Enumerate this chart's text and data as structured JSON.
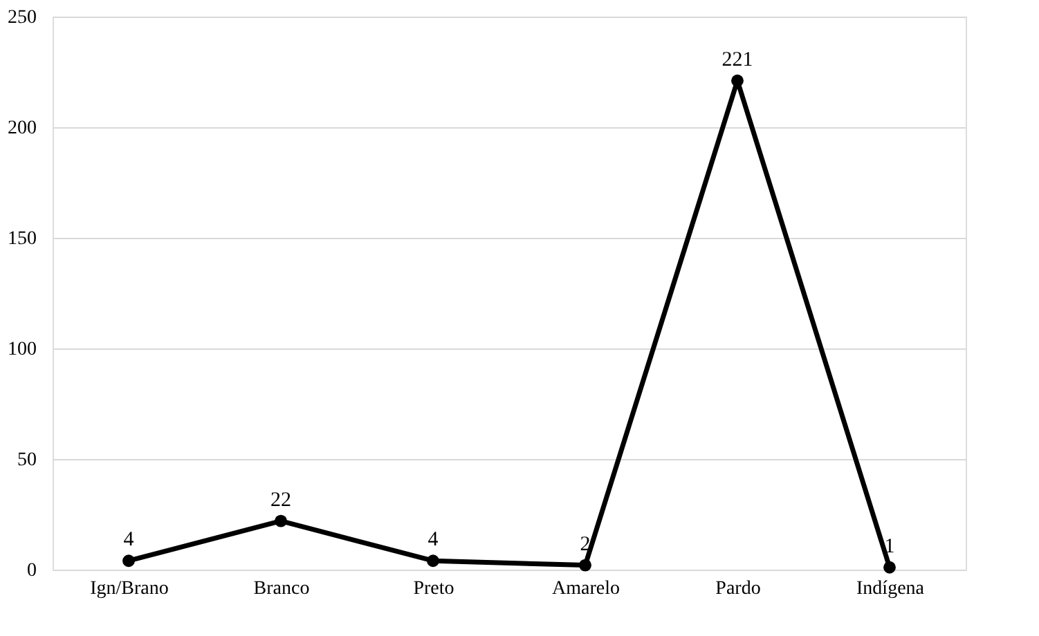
{
  "chart_data": {
    "type": "line",
    "categories": [
      "Ign/Brano",
      "Branco",
      "Preto",
      "Amarelo",
      "Pardo",
      "Indígena"
    ],
    "series": [
      {
        "color": "#000000",
        "values": [
          4,
          22,
          4,
          2,
          221,
          1
        ]
      }
    ],
    "ylim": [
      0,
      250
    ],
    "yticks": [
      0,
      50,
      100,
      150,
      200,
      250
    ],
    "grid": "y",
    "marker": "circle",
    "line_style": "solid",
    "data_labels": true,
    "legend": false
  }
}
